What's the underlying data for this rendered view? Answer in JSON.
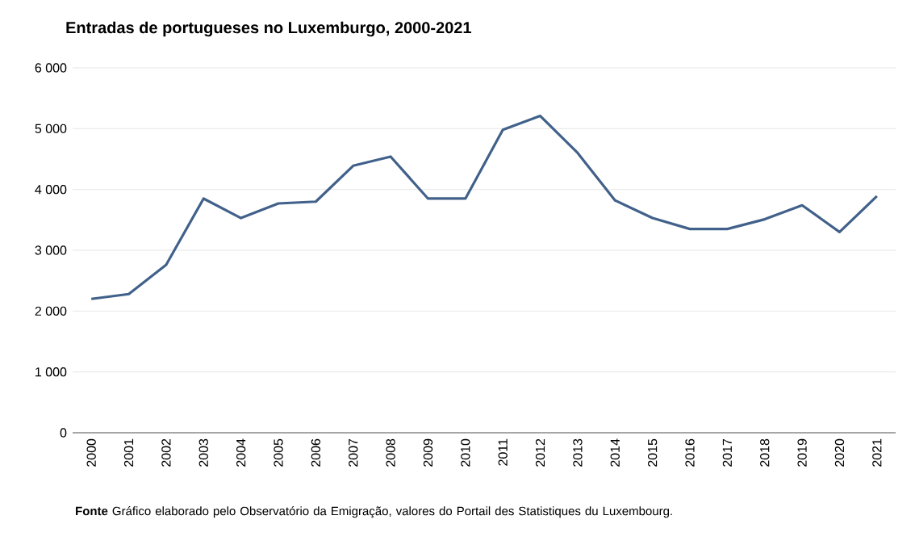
{
  "chart_data": {
    "type": "line",
    "title": "Entradas  de portugueses  no Luxemburgo, 2000-2021",
    "categories": [
      "2000",
      "2001",
      "2002",
      "2003",
      "2004",
      "2005",
      "2006",
      "2007",
      "2008",
      "2009",
      "2010",
      "2011",
      "2012",
      "2013",
      "2014",
      "2015",
      "2016",
      "2017",
      "2018",
      "2019",
      "2020",
      "2021"
    ],
    "series": [
      {
        "color": "#41618a",
        "values": [
          2200,
          2280,
          2760,
          3850,
          3530,
          3770,
          3800,
          4390,
          4540,
          3850,
          3850,
          4980,
          5210,
          4600,
          3820,
          3530,
          3350,
          3350,
          3510,
          3740,
          3300,
          3890
        ]
      }
    ],
    "ylim": [
      0,
      6000
    ],
    "yticks": [
      {
        "value": 0,
        "label": "0"
      },
      {
        "value": 1000,
        "label": "1 000"
      },
      {
        "value": 2000,
        "label": "2 000"
      },
      {
        "value": 3000,
        "label": "3 000"
      },
      {
        "value": 4000,
        "label": "4 000"
      },
      {
        "value": 5000,
        "label": "5 000"
      },
      {
        "value": 6000,
        "label": "6 000"
      }
    ],
    "grid": "y",
    "marker": "none",
    "line_style": "solid",
    "annotations": [
      "**Fonte**  Gráfico elaborado pelo  Observatório da Emigração, valores do Portail des Statistiques du Luxembourg."
    ]
  }
}
